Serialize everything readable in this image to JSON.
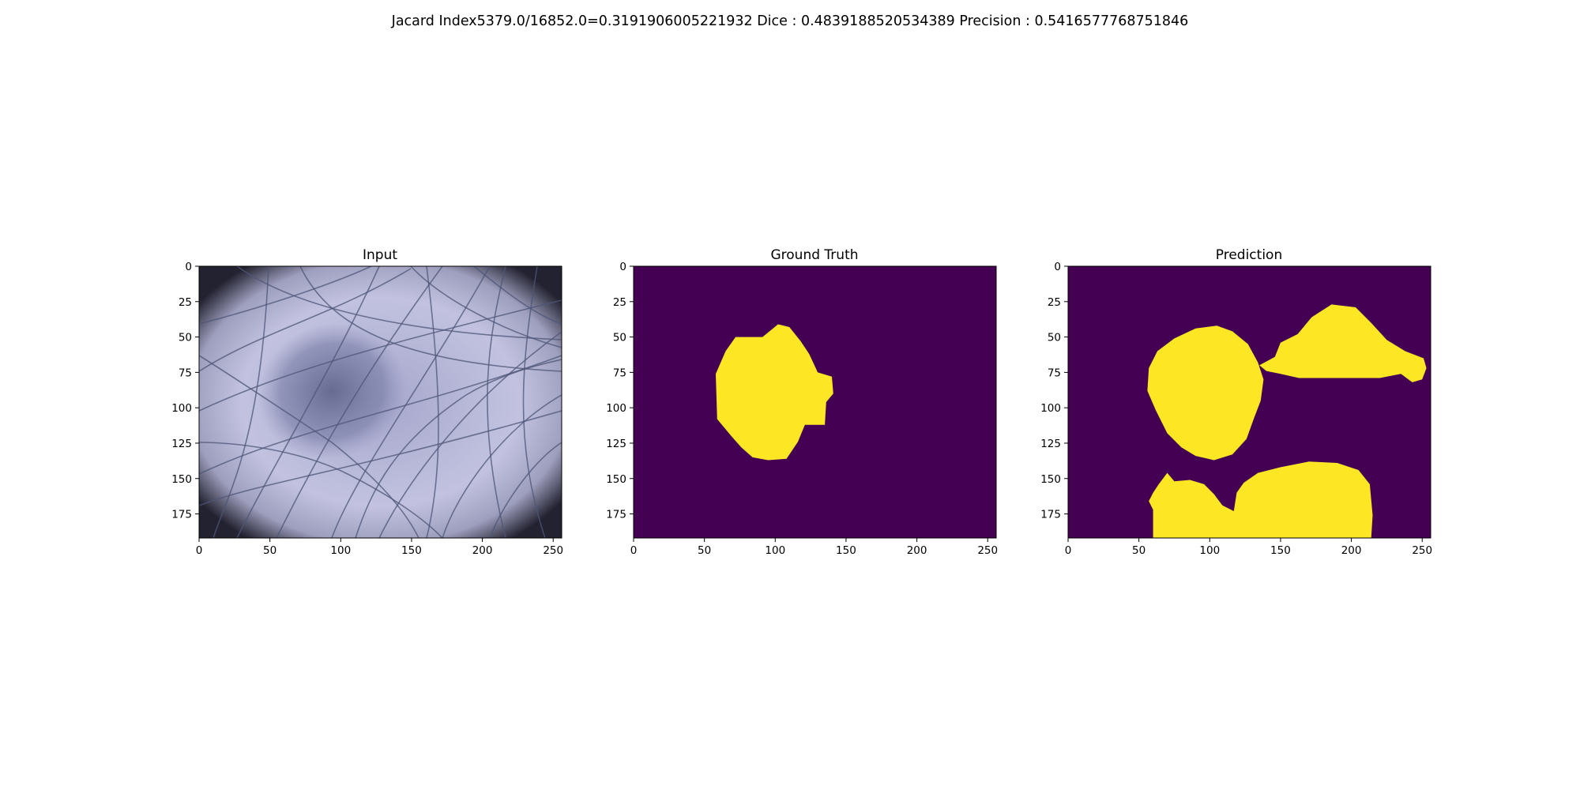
{
  "figure": {
    "suptitle": "Jacard Index5379.0/16852.0=0.3191906005221932 Dice : 0.4839188520534389 Precision : 0.5416577768751846"
  },
  "colors": {
    "mask_background": "#440154",
    "mask_foreground": "#fde725"
  },
  "chart_data": [
    {
      "type": "image",
      "title": "Input",
      "content": "dermoscopy photograph (skin lesion covered by hair)",
      "xlim": [
        0,
        256
      ],
      "ylim": [
        192,
        0
      ],
      "xticks": [
        0,
        50,
        100,
        150,
        200,
        250
      ],
      "yticks": [
        0,
        25,
        50,
        75,
        100,
        125,
        150,
        175
      ]
    },
    {
      "type": "heatmap",
      "title": "Ground Truth",
      "content": "binary mask",
      "xlim": [
        0,
        256
      ],
      "ylim": [
        192,
        0
      ],
      "xticks": [
        0,
        50,
        100,
        150,
        200,
        250
      ],
      "yticks": [
        0,
        25,
        50,
        75,
        100,
        125,
        150,
        175
      ],
      "regions": [
        {
          "outline": [
            [
              72,
              50
            ],
            [
              91,
              50
            ],
            [
              102,
              41
            ],
            [
              110,
              43
            ],
            [
              118,
              53
            ],
            [
              124,
              62
            ],
            [
              130,
              75
            ],
            [
              140,
              78
            ],
            [
              141,
              90
            ],
            [
              136,
              96
            ],
            [
              135,
              112
            ],
            [
              121,
              112
            ],
            [
              116,
              124
            ],
            [
              108,
              136
            ],
            [
              95,
              137
            ],
            [
              84,
              135
            ],
            [
              76,
              128
            ],
            [
              69,
              120
            ],
            [
              59,
              108
            ],
            [
              58,
              76
            ],
            [
              65,
              60
            ]
          ]
        }
      ]
    },
    {
      "type": "heatmap",
      "title": "Prediction",
      "content": "binary mask",
      "xlim": [
        0,
        256
      ],
      "ylim": [
        192,
        0
      ],
      "xticks": [
        0,
        50,
        100,
        150,
        200,
        250
      ],
      "yticks": [
        0,
        25,
        50,
        75,
        100,
        125,
        150,
        175
      ],
      "regions": [
        {
          "outline": [
            [
              63,
              60
            ],
            [
              75,
              51
            ],
            [
              90,
              44
            ],
            [
              105,
              42
            ],
            [
              116,
              46
            ],
            [
              127,
              55
            ],
            [
              134,
              68
            ],
            [
              138,
              80
            ],
            [
              136,
              95
            ],
            [
              131,
              108
            ],
            [
              126,
              122
            ],
            [
              116,
              133
            ],
            [
              103,
              137
            ],
            [
              90,
              134
            ],
            [
              80,
              128
            ],
            [
              70,
              118
            ],
            [
              62,
              102
            ],
            [
              56,
              88
            ],
            [
              57,
              72
            ]
          ]
        },
        {
          "outline": [
            [
              135,
              70
            ],
            [
              146,
              64
            ],
            [
              150,
              54
            ],
            [
              162,
              48
            ],
            [
              172,
              36
            ],
            [
              186,
              27
            ],
            [
              203,
              29
            ],
            [
              214,
              40
            ],
            [
              225,
              52
            ],
            [
              238,
              60
            ],
            [
              251,
              65
            ],
            [
              253,
              72
            ],
            [
              250,
              80
            ],
            [
              243,
              82
            ],
            [
              235,
              76
            ],
            [
              220,
              79
            ],
            [
              185,
              79
            ],
            [
              163,
              79
            ],
            [
              150,
              76
            ],
            [
              140,
              74
            ]
          ]
        },
        {
          "outline": [
            [
              60,
              160
            ],
            [
              64,
              154
            ],
            [
              70,
              146
            ],
            [
              75,
              152
            ],
            [
              86,
              151
            ],
            [
              96,
              154
            ],
            [
              103,
              161
            ],
            [
              109,
              169
            ],
            [
              117,
              173
            ],
            [
              119,
              160
            ],
            [
              124,
              153
            ],
            [
              134,
              146
            ],
            [
              150,
              142
            ],
            [
              170,
              138
            ],
            [
              190,
              139
            ],
            [
              205,
              144
            ],
            [
              213,
              154
            ],
            [
              215,
              176
            ],
            [
              214,
              192
            ],
            [
              60,
              192
            ],
            [
              60,
              172
            ],
            [
              57,
              166
            ]
          ]
        }
      ]
    }
  ]
}
